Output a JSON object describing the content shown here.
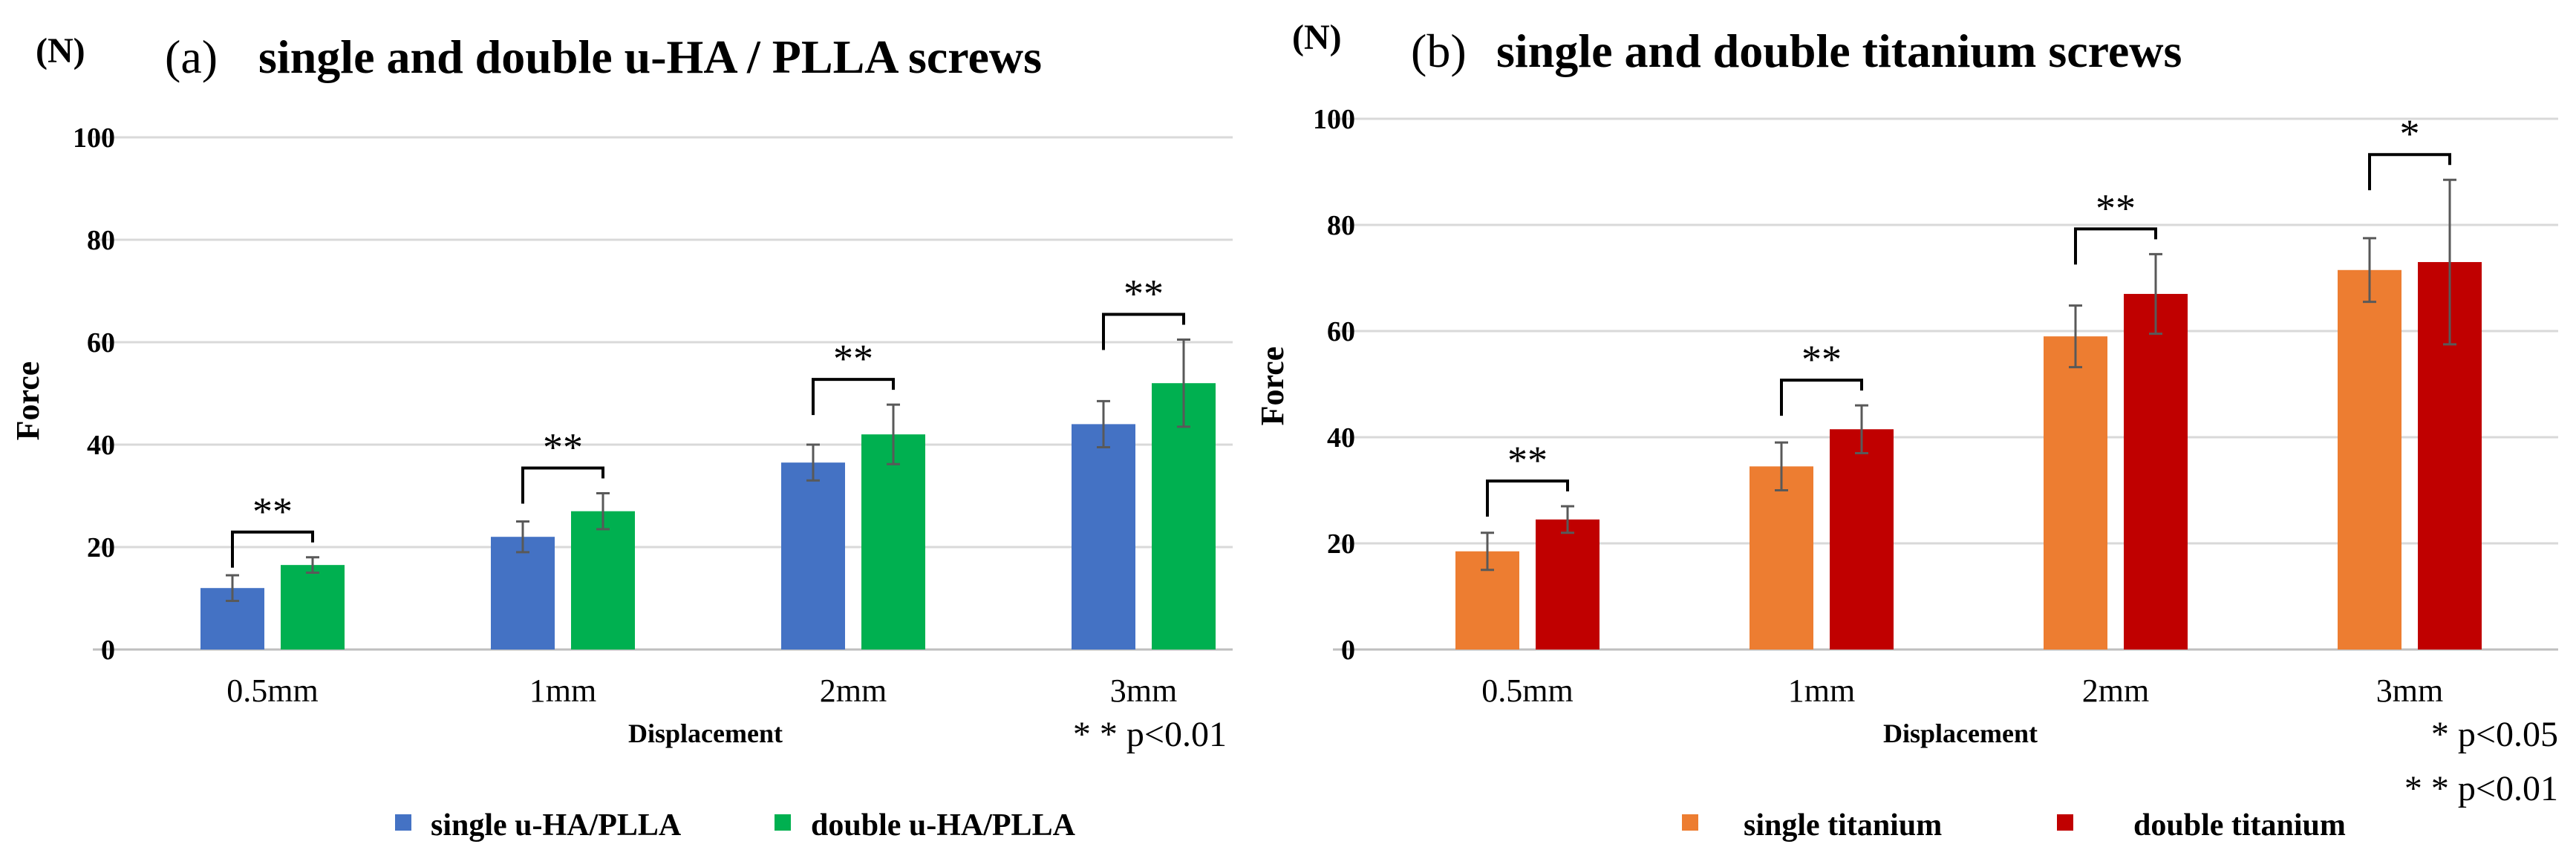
{
  "chart_data": [
    {
      "type": "bar",
      "unit_label": "(N)",
      "panel_tag": "(a)",
      "title": "single and double u-HA / PLLA screws",
      "xlabel": "Displacement",
      "ylabel": "Force",
      "ylim": [
        0,
        100
      ],
      "yticks": [
        "0",
        "20",
        "40",
        "60",
        "80",
        "100"
      ],
      "grid": true,
      "categories": [
        "0.5mm",
        "1mm",
        "2mm",
        "3mm"
      ],
      "series": [
        {
          "name": "single u-HA/PLLA",
          "color": "#4472C4",
          "values": [
            12,
            22,
            36.5,
            44
          ],
          "errors": [
            2.5,
            3,
            3.5,
            4.5
          ]
        },
        {
          "name": "double u-HA/PLLA",
          "color": "#00B050",
          "values": [
            16.5,
            27,
            42,
            52
          ],
          "errors": [
            1.5,
            3.5,
            5.8,
            8.5
          ]
        }
      ],
      "significance": [
        "**",
        "**",
        "**",
        "**"
      ],
      "notes": [
        "* * p<0.01"
      ],
      "legend_position": "bottom"
    },
    {
      "type": "bar",
      "unit_label": "(N)",
      "panel_tag": "(b)",
      "title": "single and double titanium screws",
      "xlabel": "Displacement",
      "ylabel": "Force",
      "ylim": [
        0,
        100
      ],
      "yticks": [
        "0",
        "20",
        "40",
        "60",
        "80",
        "100"
      ],
      "grid": true,
      "categories": [
        "0.5mm",
        "1mm",
        "2mm",
        "3mm"
      ],
      "series": [
        {
          "name": "single titanium",
          "color": "#ED7D31",
          "values": [
            18.5,
            34.5,
            59,
            71.5
          ],
          "errors": [
            3.5,
            4.5,
            5.8,
            6
          ]
        },
        {
          "name": "double titanium",
          "color": "#C00000",
          "values": [
            24.5,
            41.5,
            67,
            73
          ],
          "errors": [
            2.5,
            4.5,
            7.5,
            15.5
          ]
        }
      ],
      "significance": [
        "**",
        "**",
        "**",
        "*"
      ],
      "notes": [
        "* p<0.05",
        "* * p<0.01"
      ],
      "legend_position": "bottom"
    }
  ]
}
